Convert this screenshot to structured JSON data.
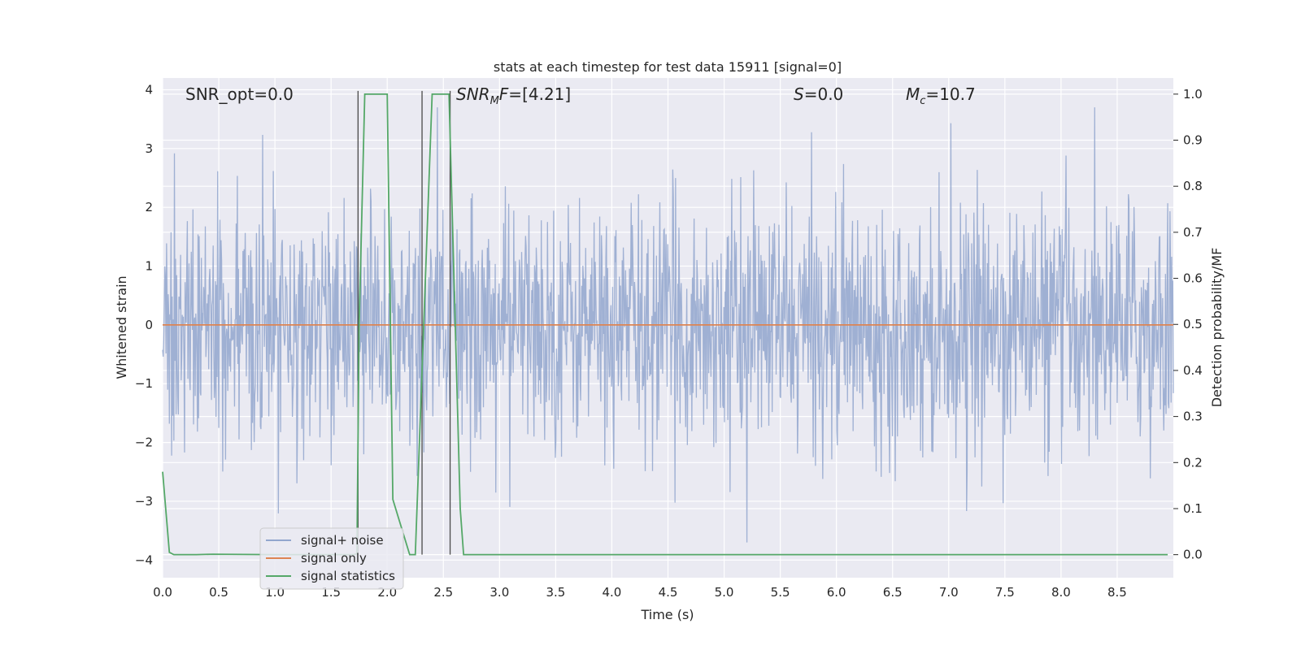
{
  "chart_data": {
    "type": "line",
    "title": "stats at each timestep for test data 15911 [signal=0]",
    "xlabel": "Time (s)",
    "ylabel": "Whitened strain",
    "y2label": "Detection probability/MF",
    "xlim": [
      0.0,
      9.0
    ],
    "ylim": [
      -4.3,
      4.2
    ],
    "y2lim": [
      -0.05,
      1.035
    ],
    "xticks": [
      "0.0",
      "0.5",
      "1.0",
      "1.5",
      "2.0",
      "2.5",
      "3.0",
      "3.5",
      "4.0",
      "4.5",
      "5.0",
      "5.5",
      "6.0",
      "6.5",
      "7.0",
      "7.5",
      "8.0",
      "8.5"
    ],
    "yticks": [
      "4",
      "3",
      "2",
      "1",
      "0",
      "−1",
      "−2",
      "−3",
      "−4"
    ],
    "y2ticks": [
      "1.0",
      "0.9",
      "0.8",
      "0.7",
      "0.6",
      "0.5",
      "0.4",
      "0.3",
      "0.2",
      "0.1",
      "0.0"
    ],
    "grid": true,
    "legend_position": "lower-left",
    "annotations": {
      "snr_opt": "SNR_opt=0.0",
      "snr_mf": "[4.21]",
      "s_value": "0.0",
      "mc_value": "10.7"
    },
    "series": [
      {
        "name": "signal+ noise",
        "color": "#92a6ce",
        "noise_band": {
          "typical_abs": 1.4,
          "max_abs": 3.7,
          "samples": 9
        }
      },
      {
        "name": "signal only",
        "color": "#dd8452",
        "x": [
          0.0,
          9.0
        ],
        "y": [
          0.0,
          0.0
        ]
      },
      {
        "name": "signal statistics",
        "color": "#55a868",
        "axis": "right",
        "x": [
          0.0,
          0.06,
          0.1,
          0.3,
          0.45,
          1.0,
          1.5,
          1.7,
          1.73,
          1.75,
          1.8,
          1.9,
          2.0,
          2.05,
          2.2,
          2.25,
          2.4,
          2.45,
          2.55,
          2.65,
          2.68,
          3.0,
          8.95
        ],
        "y": [
          0.18,
          0.005,
          0.0,
          0.0,
          0.001,
          0.0,
          0.0,
          0.0,
          0.002,
          0.5,
          1.0,
          1.0,
          1.0,
          0.12,
          0.0,
          0.0,
          1.0,
          1.0,
          1.0,
          0.1,
          0.0,
          0.0,
          0.0
        ]
      }
    ],
    "vertical_markers": [
      1.74,
      2.31,
      2.56
    ]
  }
}
